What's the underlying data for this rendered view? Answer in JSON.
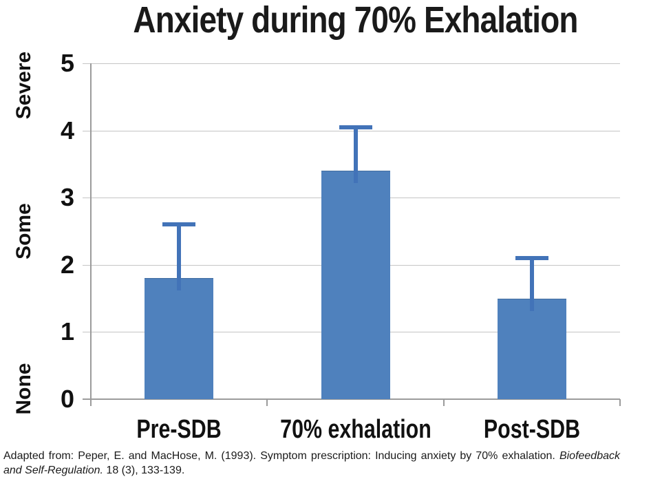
{
  "title": "Anxiety during 70% Exhalation",
  "chart_data": {
    "type": "bar",
    "title": "Anxiety during 70% Exhalation",
    "categories": [
      "Pre-SDB",
      "70% exhalation",
      "Post-SDB"
    ],
    "values": [
      1.8,
      3.4,
      1.5
    ],
    "errors_upper": [
      0.8,
      0.65,
      0.6
    ],
    "xlabel": "",
    "ylabel": "",
    "ylim": [
      0,
      5
    ],
    "y_ticks": [
      0,
      1,
      2,
      3,
      4,
      5
    ],
    "zone_labels": [
      {
        "label": "None",
        "value": 0.15
      },
      {
        "label": "Some",
        "value": 2.5
      },
      {
        "label": "Severe",
        "value": 4.67
      }
    ],
    "grid": true,
    "legend": false,
    "colors": {
      "bar_fill": "#4F81BD",
      "bar_top_edge": "#426D9F",
      "error_bar": "#4273B8",
      "gridline": "#C4C4C4",
      "axis": "#9B9B9B",
      "text": "#111111"
    }
  },
  "citation": {
    "line1_regular": "Adapted from: Peper, E. and MacHose, M. (1993). Symptom prescription: Inducing anxiety by 70% exhalation. ",
    "line1_italic": "Biofeedback",
    "line2_italic": "and Self-Regulation.",
    "line2_regular": " 18 (3), 133-139."
  }
}
